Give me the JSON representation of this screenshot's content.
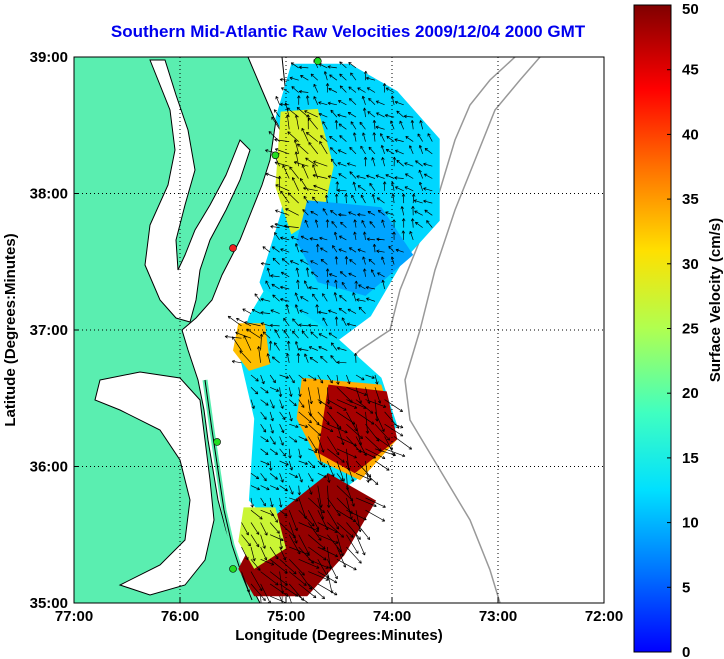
{
  "title": "Southern Mid-Atlantic Raw Velocities 2009/12/04 2000 GMT",
  "colors": {
    "land": "#5aeeb0",
    "coast": "#000000",
    "grid": "#000000",
    "isobath": "#999999",
    "title": "#0000ee",
    "station": "#22dd22",
    "station_alt": "#ee2222"
  },
  "map_data": {
    "xlabel": "Longitude (Degrees:Minutes)",
    "ylabel": "Latitude (Degrees:Minutes)",
    "xlim": [
      -77,
      -72
    ],
    "ylim": [
      35,
      39
    ],
    "x_ticks": [
      {
        "value": -77,
        "label": "77:00"
      },
      {
        "value": -76,
        "label": "76:00"
      },
      {
        "value": -75,
        "label": "75:00"
      },
      {
        "value": -74,
        "label": "74:00"
      },
      {
        "value": -73,
        "label": "73:00"
      },
      {
        "value": -72,
        "label": "72:00"
      }
    ],
    "y_ticks": [
      {
        "value": 35,
        "label": "35:00"
      },
      {
        "value": 36,
        "label": "36:00"
      },
      {
        "value": 37,
        "label": "37:00"
      },
      {
        "value": 38,
        "label": "38:00"
      },
      {
        "value": 39,
        "label": "39:00"
      }
    ]
  },
  "colorbar": {
    "label": "Surface Velocity (cm/s)",
    "range": [
      0,
      50
    ],
    "ticks": [
      {
        "value": 0,
        "label": "0"
      },
      {
        "value": 5,
        "label": "5"
      },
      {
        "value": 10,
        "label": "10"
      },
      {
        "value": 15,
        "label": "15"
      },
      {
        "value": 20,
        "label": "20"
      },
      {
        "value": 25,
        "label": "25"
      },
      {
        "value": 30,
        "label": "30"
      },
      {
        "value": 35,
        "label": "35"
      },
      {
        "value": 40,
        "label": "40"
      },
      {
        "value": 45,
        "label": "45"
      },
      {
        "value": 50,
        "label": "50"
      }
    ]
  },
  "stations": [
    {
      "lon": -74.7,
      "lat": 38.97,
      "kind": "station"
    },
    {
      "lon": -75.1,
      "lat": 38.28,
      "kind": "station"
    },
    {
      "lon": -75.5,
      "lat": 37.6,
      "kind": "station_alt"
    },
    {
      "lon": -75.65,
      "lat": 36.18,
      "kind": "station"
    },
    {
      "lon": -75.5,
      "lat": 35.25,
      "kind": "station"
    }
  ],
  "velocity_regions": [
    {
      "name": "north-shelf",
      "poly": [
        [
          -74.95,
          38.95
        ],
        [
          -74.4,
          38.95
        ],
        [
          -73.95,
          38.75
        ],
        [
          -73.55,
          38.4
        ],
        [
          -73.55,
          37.8
        ],
        [
          -73.9,
          37.5
        ],
        [
          -74.2,
          37.1
        ],
        [
          -74.55,
          36.9
        ],
        [
          -75.0,
          36.9
        ],
        [
          -75.25,
          37.35
        ],
        [
          -75.05,
          37.85
        ],
        [
          -74.95,
          38.3
        ],
        [
          -75.1,
          38.55
        ],
        [
          -74.95,
          38.95
        ]
      ],
      "speed": 12
    },
    {
      "name": "north-fast-band",
      "poly": [
        [
          -75.05,
          38.6
        ],
        [
          -74.7,
          38.62
        ],
        [
          -74.55,
          38.2
        ],
        [
          -74.65,
          37.85
        ],
        [
          -74.95,
          37.7
        ],
        [
          -75.1,
          38.05
        ]
      ],
      "speed": 28
    },
    {
      "name": "slow-core",
      "poly": [
        [
          -74.8,
          37.95
        ],
        [
          -74.1,
          37.9
        ],
        [
          -73.8,
          37.55
        ],
        [
          -74.25,
          37.25
        ],
        [
          -74.7,
          37.35
        ],
        [
          -74.9,
          37.65
        ]
      ],
      "speed": 9
    },
    {
      "name": "mid-shelf",
      "poly": [
        [
          -75.2,
          37.3
        ],
        [
          -74.6,
          37.0
        ],
        [
          -74.1,
          36.65
        ],
        [
          -73.95,
          36.3
        ],
        [
          -74.25,
          35.95
        ],
        [
          -74.7,
          35.7
        ],
        [
          -75.1,
          35.55
        ],
        [
          -75.35,
          35.75
        ],
        [
          -75.3,
          36.35
        ],
        [
          -75.45,
          36.85
        ],
        [
          -75.35,
          37.1
        ]
      ],
      "speed": 13
    },
    {
      "name": "mouth-jet",
      "poly": [
        [
          -75.45,
          37.05
        ],
        [
          -75.2,
          37.05
        ],
        [
          -75.15,
          36.75
        ],
        [
          -75.35,
          36.7
        ],
        [
          -75.5,
          36.85
        ]
      ],
      "speed": 33
    },
    {
      "name": "gulf-stream-wall",
      "poly": [
        [
          -74.85,
          36.65
        ],
        [
          -74.1,
          36.6
        ],
        [
          -73.95,
          36.2
        ],
        [
          -74.3,
          35.9
        ],
        [
          -74.7,
          36.05
        ],
        [
          -74.9,
          36.35
        ]
      ],
      "speed": 34
    },
    {
      "name": "gulf-stream-core",
      "poly": [
        [
          -74.6,
          36.6
        ],
        [
          -74.05,
          36.55
        ],
        [
          -73.95,
          36.2
        ],
        [
          -74.35,
          35.95
        ],
        [
          -74.7,
          36.1
        ]
      ],
      "speed": 48
    },
    {
      "name": "hatteras-jet",
      "poly": [
        [
          -75.25,
          35.55
        ],
        [
          -74.6,
          35.95
        ],
        [
          -74.15,
          35.75
        ],
        [
          -74.45,
          35.35
        ],
        [
          -74.8,
          35.05
        ],
        [
          -75.3,
          35.05
        ],
        [
          -75.45,
          35.25
        ]
      ],
      "speed": 49
    },
    {
      "name": "hatteras-edge",
      "poly": [
        [
          -75.4,
          35.7
        ],
        [
          -75.1,
          35.7
        ],
        [
          -75.0,
          35.4
        ],
        [
          -75.3,
          35.25
        ],
        [
          -75.45,
          35.45
        ]
      ],
      "speed": 27
    }
  ]
}
